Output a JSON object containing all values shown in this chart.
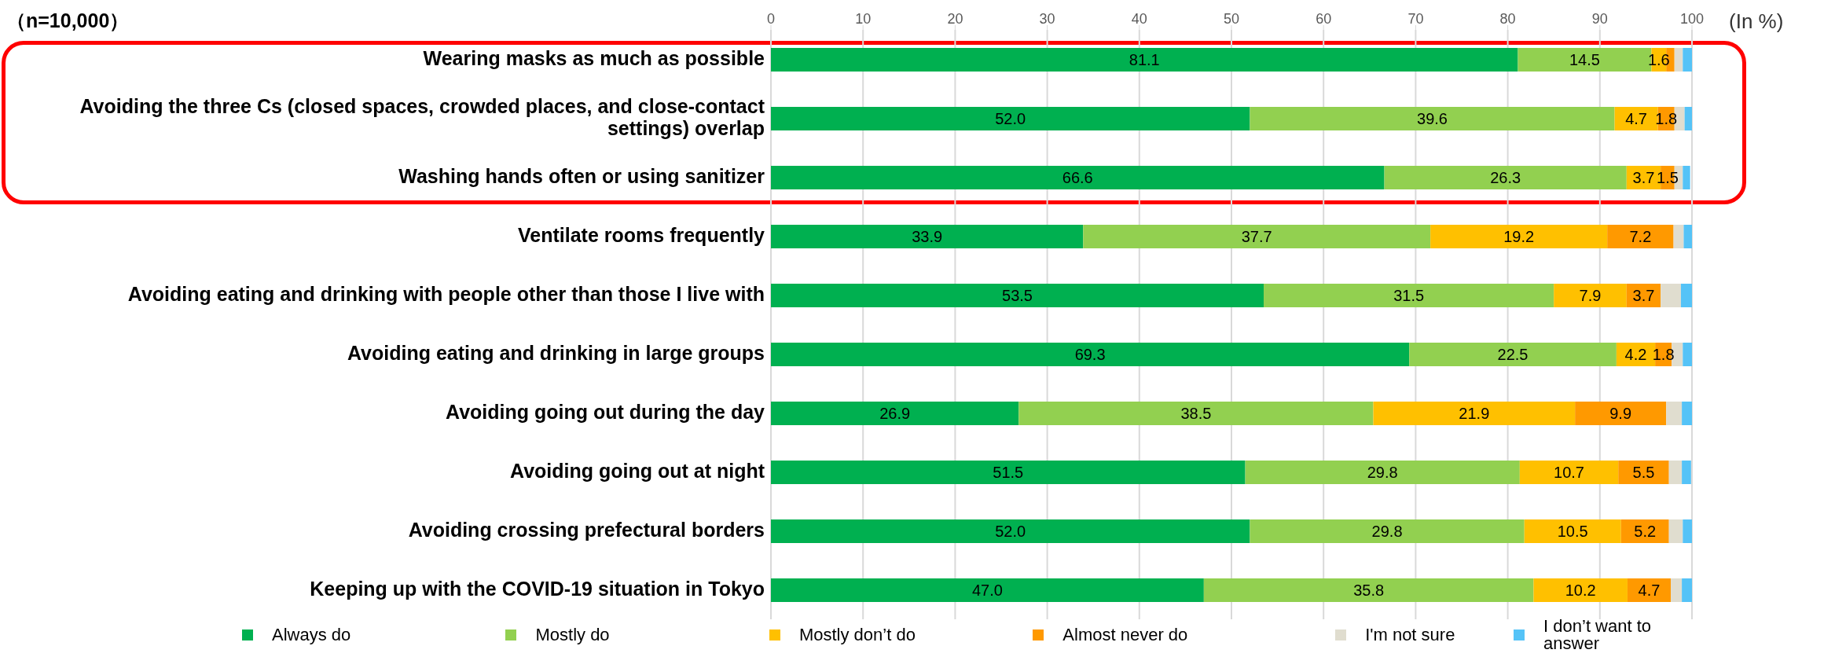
{
  "chart_data": {
    "type": "bar",
    "orientation": "horizontal",
    "stacked": true,
    "title": "（n=10,000）",
    "xlabel": "(In %)",
    "categories": [
      "Wearing masks as much as possible",
      "Avoiding the three Cs (closed spaces, crowded places, and close-contact settings) overlap",
      "Washing hands often or using sanitizer",
      "Ventilate rooms frequently",
      "Avoiding eating and drinking with people other than those I live with",
      "Avoiding eating and drinking in large groups",
      "Avoiding going out during the day",
      "Avoiding going out at night",
      "Avoiding crossing prefectural borders",
      "Keeping up with the COVID-19 situation in Tokyo"
    ],
    "series": [
      {
        "name": "Always do",
        "color": "#00b050",
        "values": [
          81.1,
          52.0,
          66.6,
          33.9,
          53.5,
          69.3,
          26.9,
          51.5,
          52.0,
          47.0
        ],
        "value_labels": [
          "81.1",
          "52.0",
          "66.6",
          "33.9",
          "53.5",
          "69.3",
          "26.9",
          "51.5",
          "52.0",
          "47.0"
        ]
      },
      {
        "name": "Mostly do",
        "color": "#92d050",
        "values": [
          14.5,
          39.6,
          26.3,
          37.7,
          31.5,
          22.5,
          38.5,
          29.8,
          29.8,
          35.8
        ],
        "value_labels": [
          "14.5",
          "39.6",
          "26.3",
          "37.7",
          "31.5",
          "22.5",
          "38.5",
          "29.8",
          "29.8",
          "35.8"
        ]
      },
      {
        "name": "Mostly don’t do",
        "color": "#ffc000",
        "values": [
          1.6,
          4.7,
          3.7,
          19.2,
          7.9,
          4.2,
          21.9,
          10.7,
          10.5,
          10.2
        ],
        "value_labels": [
          "1.6",
          "4.7",
          "3.7",
          "19.2",
          "7.9",
          "4.2",
          "21.9",
          "10.7",
          "10.5",
          "10.2"
        ]
      },
      {
        "name": "Almost never do",
        "color": "#ff9900",
        "values": [
          0.9,
          1.8,
          1.5,
          7.2,
          3.7,
          1.8,
          9.9,
          5.5,
          5.2,
          4.7
        ],
        "value_labels": [
          null,
          "1.8",
          "1.5",
          "7.2",
          "3.7",
          "1.8",
          "9.9",
          "5.5",
          "5.2",
          "4.7"
        ]
      },
      {
        "name": "I'm not sure",
        "color": "#e0ddcf",
        "values": [
          0.9,
          1.1,
          0.9,
          1.1,
          2.2,
          1.2,
          1.7,
          1.4,
          1.5,
          1.2
        ]
      },
      {
        "name": "I don’t want to answer",
        "color": "#55c3f7",
        "values": [
          1.0,
          0.9,
          0.8,
          1.0,
          1.2,
          1.0,
          1.2,
          1.0,
          1.1,
          1.1
        ]
      }
    ],
    "xlim": [
      0,
      100
    ],
    "xticks": [
      0,
      10,
      20,
      30,
      40,
      50,
      60,
      70,
      80,
      90,
      100
    ],
    "grid": "x",
    "legend": "bottom"
  }
}
